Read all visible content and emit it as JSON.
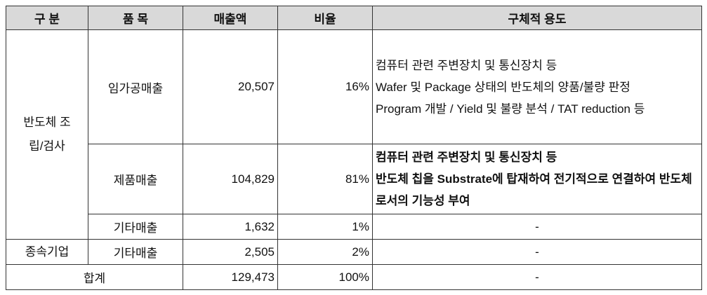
{
  "table": {
    "header": [
      "구 분",
      "품 목",
      "매출액",
      "비율",
      "구체적 용도"
    ],
    "rows": [
      {
        "group": "반도체 조립/검사",
        "item": "임가공매출",
        "sales": "20,507",
        "ratio": "16%",
        "use": [
          "컴퓨터 관련 주변장치 및 통신장치 등",
          "Wafer 및 Package 상태의 반도체의 양품/불량 판정",
          "Program 개발 / Yield 및 불량 분석 / TAT reduction 등"
        ]
      },
      {
        "item": "제품매출",
        "sales": "104,829",
        "ratio": "81%",
        "use": [
          "컴퓨터 관련 주변장치 및 통신장치 등",
          "반도체 칩을 Substrate에 탑재하여 전기적으로 연결하여 반도체로서의 기능성 부여"
        ]
      },
      {
        "item": "기타매출",
        "sales": "1,632",
        "ratio": "1%",
        "use": [
          "-"
        ]
      },
      {
        "group": "종속기업",
        "item": "기타매출",
        "sales": "2,505",
        "ratio": "2%",
        "use": [
          "-"
        ]
      },
      {
        "label": "합계",
        "sales": "129,473",
        "ratio": "100%",
        "use": [
          "-"
        ]
      }
    ]
  }
}
